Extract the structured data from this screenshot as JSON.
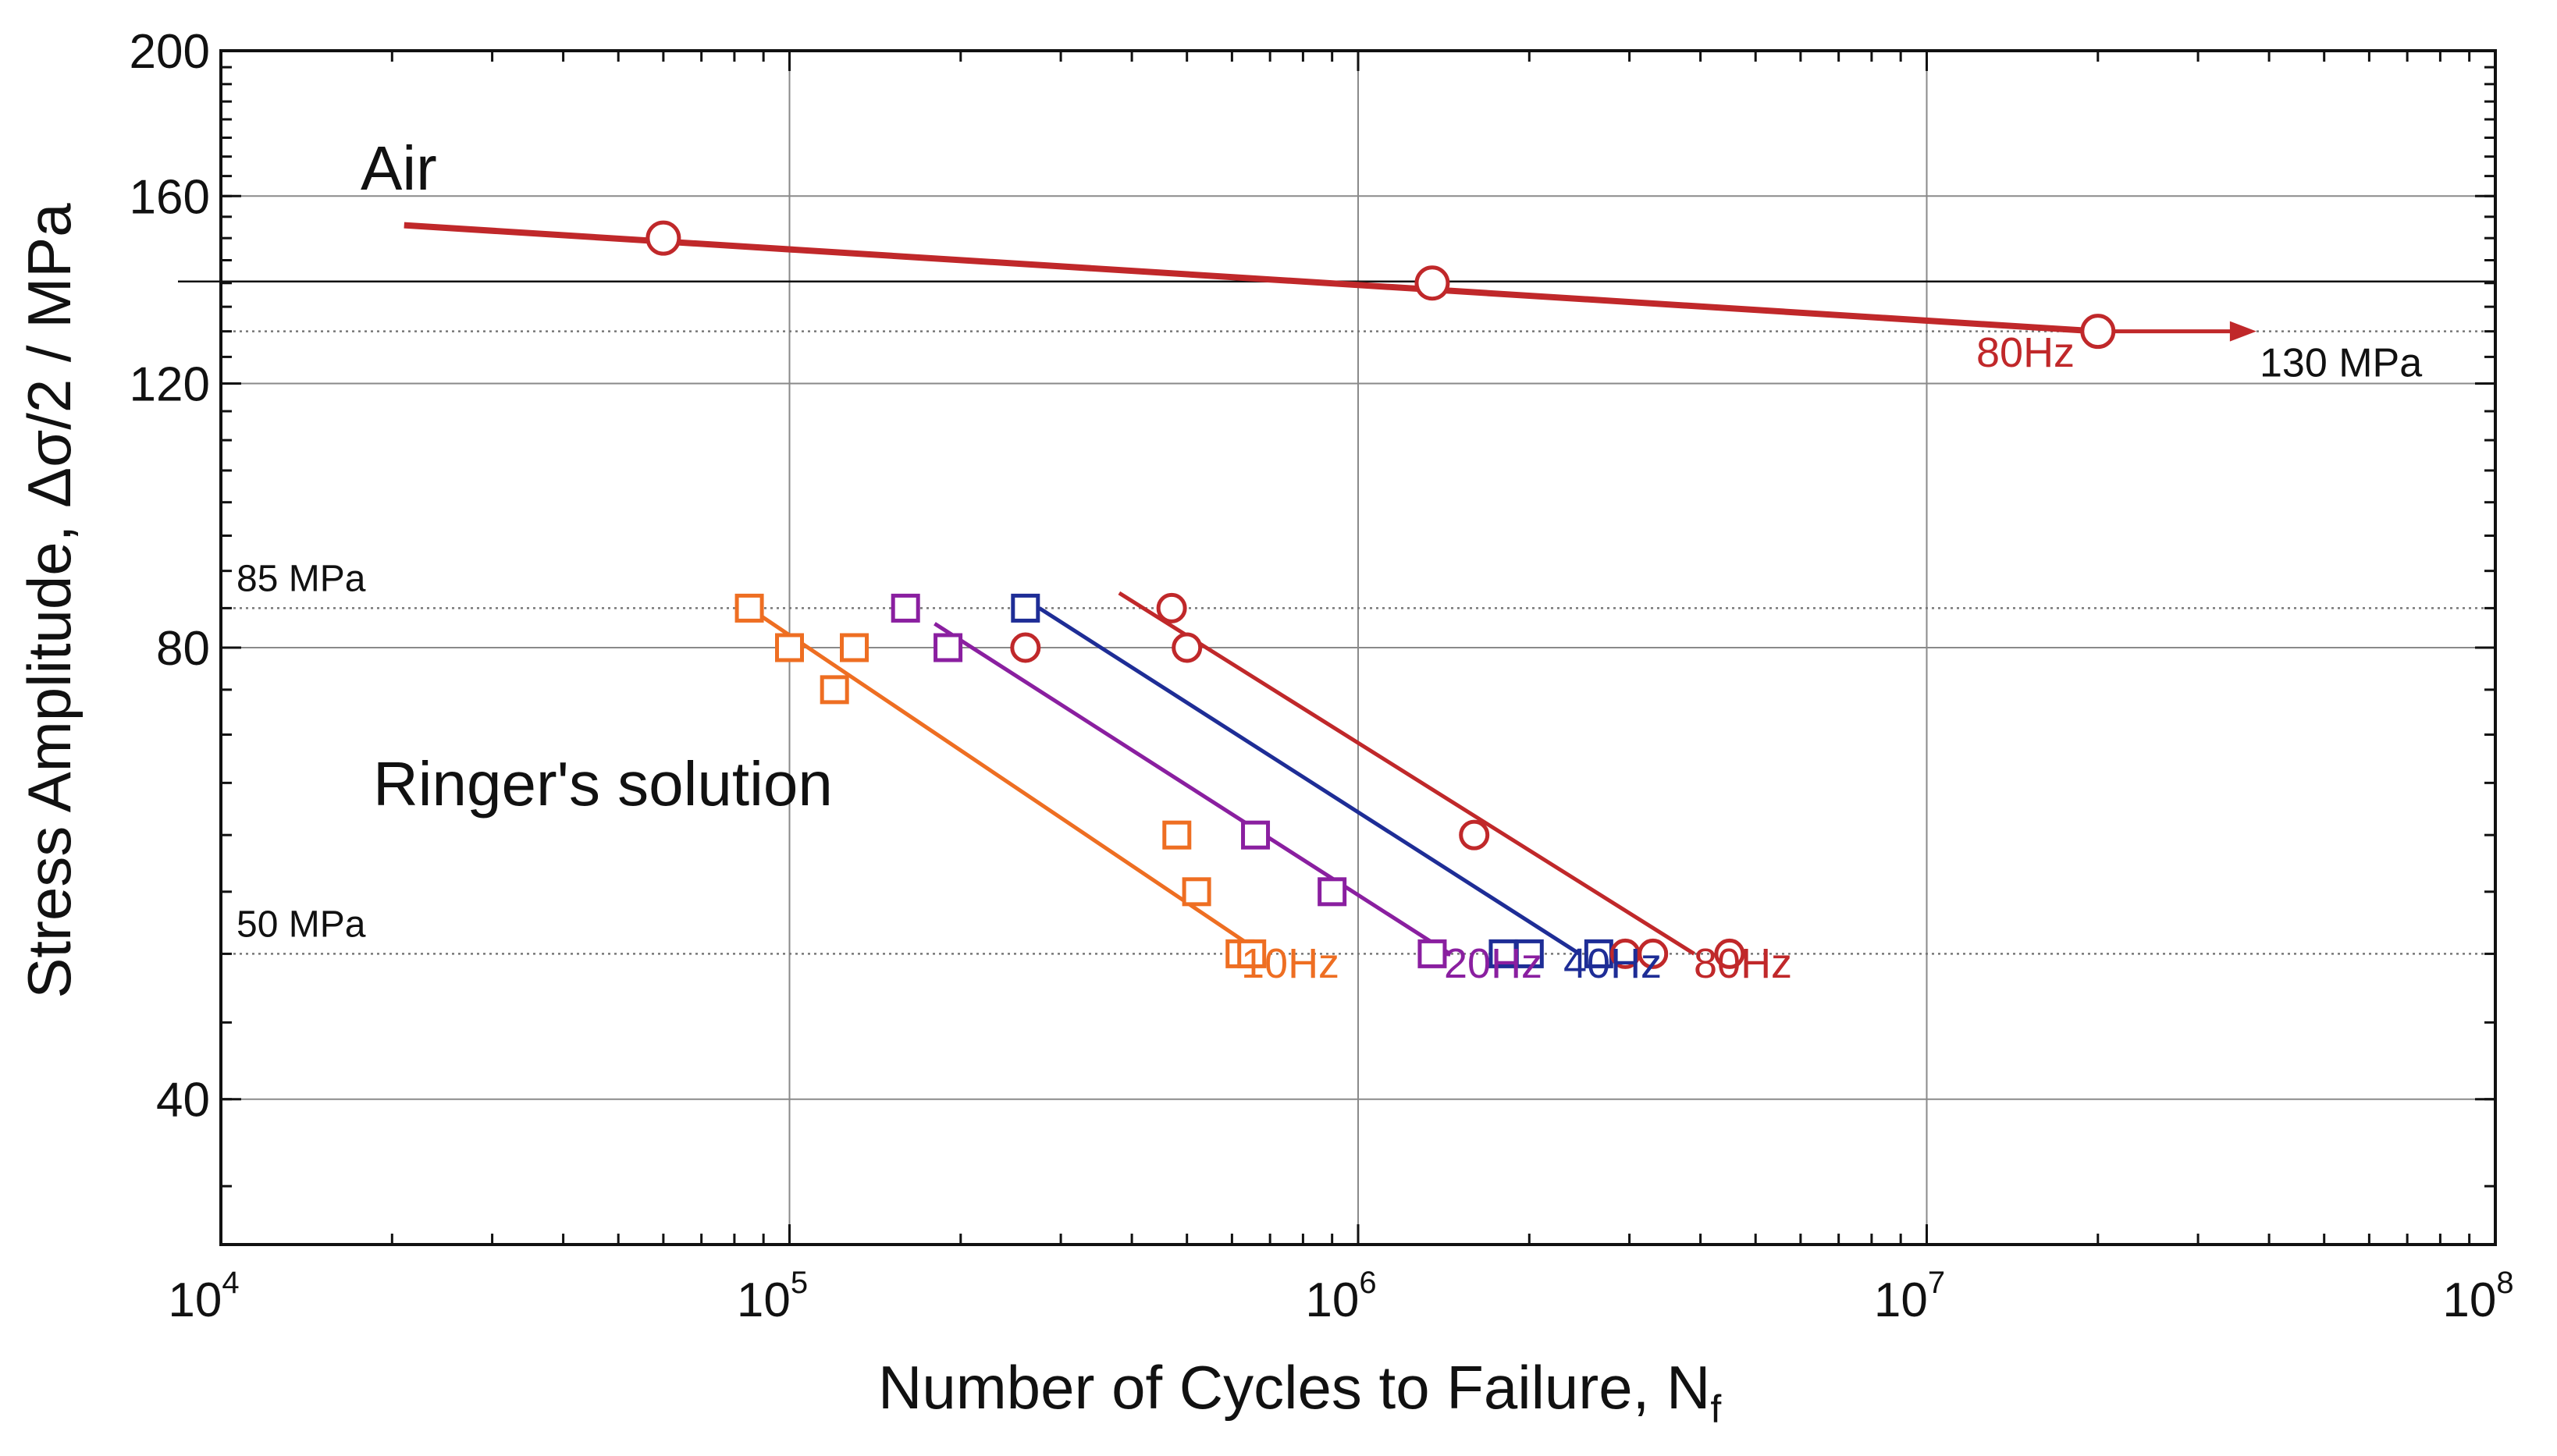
{
  "chart_data": {
    "type": "scatter",
    "xscale": "log",
    "yscale": "log",
    "xlim": [
      10000,
      100000000
    ],
    "ylim": [
      32,
      200
    ],
    "xlabel_main": "Number of Cycles to Failure, N",
    "xlabel_sub": "f",
    "ylabel": "Stress Amplitude, Δσ/2 / MPa",
    "x_ticks": [
      {
        "value": 10000,
        "base": "10",
        "exp": "4"
      },
      {
        "value": 100000,
        "base": "10",
        "exp": "5"
      },
      {
        "value": 1000000,
        "base": "10",
        "exp": "6"
      },
      {
        "value": 10000000,
        "base": "10",
        "exp": "7"
      },
      {
        "value": 100000000,
        "base": "10",
        "exp": "8"
      }
    ],
    "y_ticks": [
      {
        "value": 40,
        "label": "40"
      },
      {
        "value": 80,
        "label": "80"
      },
      {
        "value": 120,
        "label": "120"
      },
      {
        "value": 160,
        "label": "160"
      },
      {
        "value": 200,
        "label": "200"
      }
    ],
    "reference_lines": [
      {
        "y": 85,
        "label": "85 MPa"
      },
      {
        "y": 50,
        "label": "50 MPa"
      },
      {
        "y": 130,
        "label": "130 MPa"
      }
    ],
    "annotations": {
      "air": "Air",
      "ringer": "Ringer's solution",
      "air_freq": "80Hz"
    },
    "series": [
      {
        "name": "Air 80Hz",
        "environment": "Air",
        "marker": "circle",
        "color": "#c0282a",
        "points": [
          [
            60000,
            150
          ],
          [
            1350000,
            140
          ],
          [
            20000000,
            130
          ]
        ],
        "fit": [
          [
            21000,
            153
          ],
          [
            20000000,
            130
          ]
        ],
        "runout_arrow": {
          "from": 20000000,
          "to": 38000000,
          "y": 130
        }
      },
      {
        "name": "10Hz",
        "environment": "Ringer's solution",
        "marker": "square",
        "color": "#ee6e22",
        "points": [
          [
            85000,
            85
          ],
          [
            100000,
            80
          ],
          [
            120000,
            75
          ],
          [
            130000,
            80
          ],
          [
            480000,
            60
          ],
          [
            520000,
            55
          ],
          [
            620000,
            50
          ],
          [
            650000,
            50
          ]
        ],
        "fit": [
          [
            85000,
            85
          ],
          [
            680000,
            50
          ]
        ]
      },
      {
        "name": "20Hz",
        "environment": "Ringer's solution",
        "marker": "square",
        "color": "#8a1fa0",
        "points": [
          [
            160000,
            85
          ],
          [
            190000,
            80
          ],
          [
            660000,
            60
          ],
          [
            900000,
            55
          ],
          [
            1350000,
            50
          ]
        ],
        "fit": [
          [
            180000,
            83
          ],
          [
            1450000,
            50
          ]
        ]
      },
      {
        "name": "40Hz",
        "environment": "Ringer's solution",
        "marker": "square",
        "color": "#1e2d96",
        "points": [
          [
            260000,
            85
          ],
          [
            1800000,
            50
          ],
          [
            2000000,
            50
          ],
          [
            2650000,
            50
          ]
        ],
        "fit": [
          [
            275000,
            85
          ],
          [
            2450000,
            50
          ]
        ]
      },
      {
        "name": "80Hz",
        "environment": "Ringer's solution",
        "marker": "circle",
        "color": "#c0282a",
        "points": [
          [
            260000,
            80
          ],
          [
            470000,
            85
          ],
          [
            500000,
            80
          ],
          [
            1600000,
            60
          ],
          [
            2950000,
            50
          ],
          [
            3300000,
            50
          ],
          [
            4500000,
            50
          ]
        ],
        "fit": [
          [
            380000,
            87
          ],
          [
            3900000,
            50
          ]
        ]
      }
    ]
  }
}
